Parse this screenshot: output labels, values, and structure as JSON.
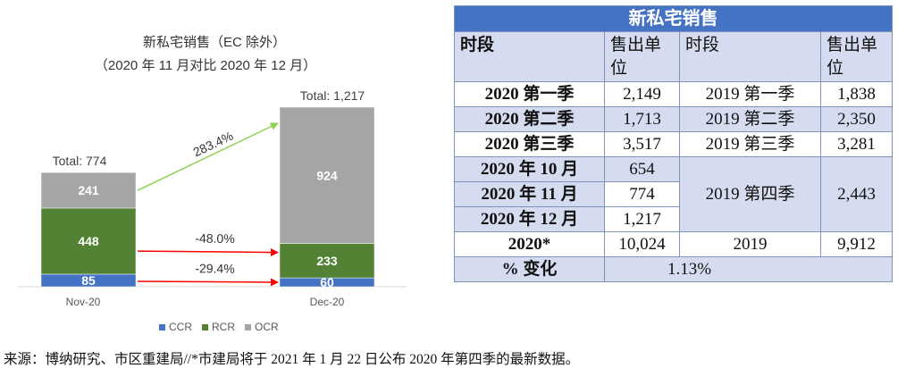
{
  "chart_data": {
    "type": "bar",
    "stacked": true,
    "title": "新私宅销售（EC 除外）",
    "subtitle": "（2020 年 11 月对比 2020 年 12 月）",
    "categories": [
      "Nov-20",
      "Dec-20"
    ],
    "totals": [
      "Total: 774",
      "Total: 1,217"
    ],
    "series": [
      {
        "name": "CCR",
        "values": [
          85,
          60
        ],
        "color": "#4472c4"
      },
      {
        "name": "RCR",
        "values": [
          448,
          233
        ],
        "color": "#548235"
      },
      {
        "name": "OCR",
        "values": [
          241,
          924
        ],
        "color": "#a5a5a5"
      }
    ],
    "annotations": [
      {
        "label": "283.4%",
        "series": "OCR",
        "color": "#92d050"
      },
      {
        "label": "-48.0%",
        "series": "RCR",
        "color": "#ff0000"
      },
      {
        "label": "-29.4%",
        "series": "CCR",
        "color": "#ff0000"
      }
    ],
    "legend_position": "bottom"
  },
  "table": {
    "title": "新私宅销售",
    "headers": {
      "period": "时段",
      "units": "售出单位",
      "period2": "时段",
      "units2": "售出单位"
    },
    "rows": [
      {
        "p": "2020 第一季",
        "u": "2,149",
        "p2": "2019 第一季",
        "u2": "1,838"
      },
      {
        "p": "2020 第二季",
        "u": "1,713",
        "p2": "2019 第二季",
        "u2": "2,350"
      },
      {
        "p": "2020 第三季",
        "u": "3,517",
        "p2": "2019 第三季",
        "u2": "3,281"
      }
    ],
    "monthly": [
      {
        "p": "2020 年 10 月",
        "u": "654"
      },
      {
        "p": "2020 年 11 月",
        "u": "774"
      },
      {
        "p": "2020 年 12 月",
        "u": "1,217"
      }
    ],
    "q4_2019": {
      "p2": "2019 第四季",
      "u2": "2,443"
    },
    "year": {
      "p": "2020*",
      "u": "10,024",
      "p2": "2019",
      "u2": "9,912"
    },
    "change": {
      "label": "% 变化",
      "value": "1.13%"
    }
  },
  "footnote": "来源：博纳研究、市区重建局//*市建局将于 2021 年 1 月 22 日公布 2020 年第四季的最新数据。"
}
